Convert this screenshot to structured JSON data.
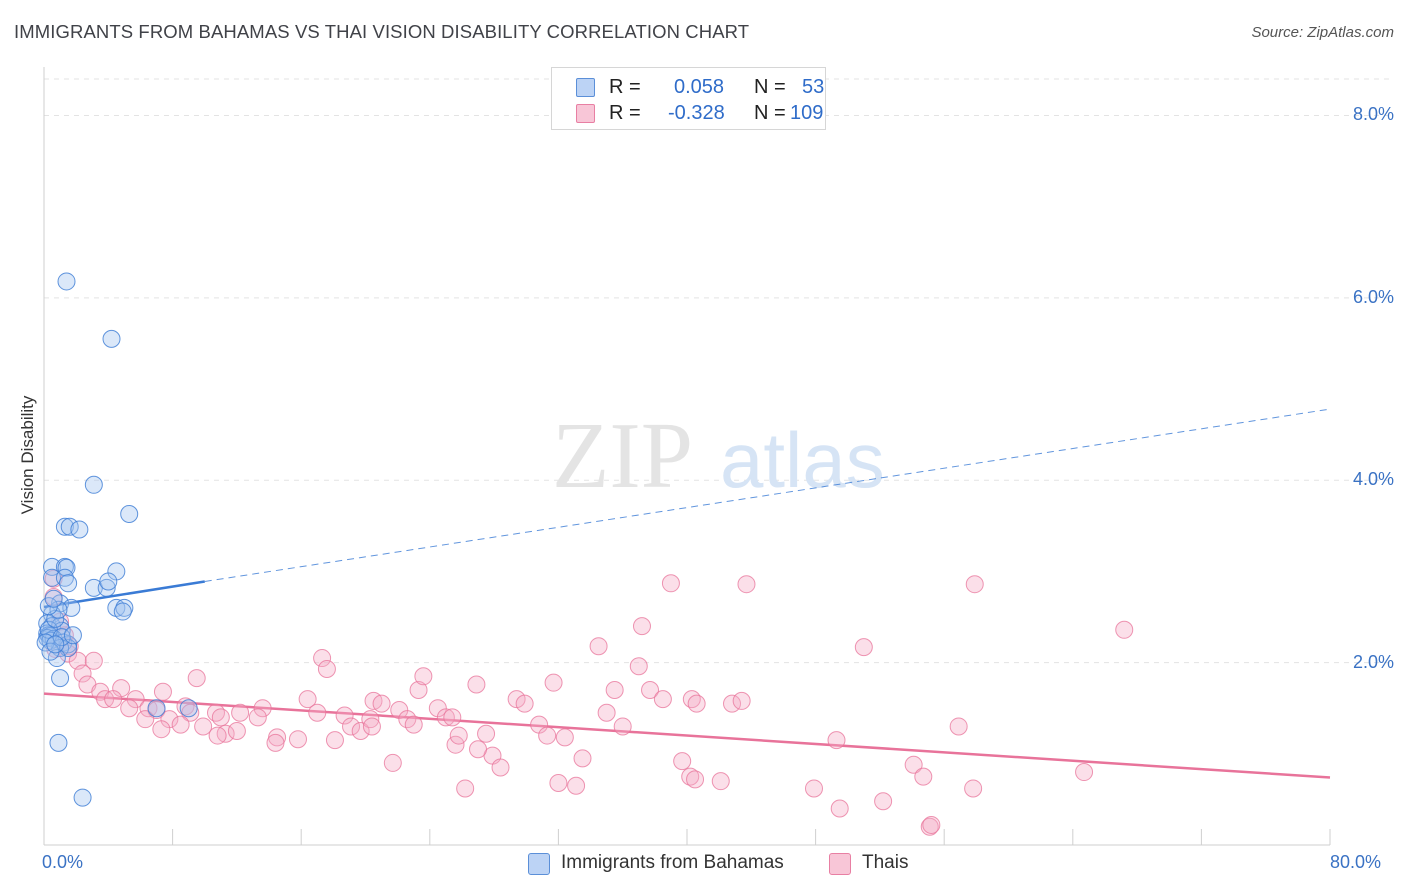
{
  "header": {
    "title": "IMMIGRANTS FROM BAHAMAS VS THAI VISION DISABILITY CORRELATION CHART",
    "source": "Source: ZipAtlas.com"
  },
  "watermark": {
    "zip": "ZIP",
    "atlas": "atlas"
  },
  "legend": {
    "rows": [
      {
        "r_label": "R =",
        "r_value": "0.058",
        "n_label": "N =",
        "n_value": "53",
        "color": "#5b8fd8",
        "fill": "#bcd3f5"
      },
      {
        "r_label": "R =",
        "r_value": "-0.328",
        "n_label": "N =",
        "n_value": "109",
        "color": "#e87fa3",
        "fill": "#f8c6d7"
      }
    ]
  },
  "bottom_legend": [
    {
      "label": "Immigrants from Bahamas",
      "color": "#5b8fd8",
      "fill": "#bcd3f5"
    },
    {
      "label": "Thais",
      "color": "#e87fa3",
      "fill": "#f8c6d7"
    }
  ],
  "chart_data": {
    "type": "scatter",
    "title": "IMMIGRANTS FROM BAHAMAS VS THAI VISION DISABILITY CORRELATION CHART",
    "xlabel": "",
    "ylabel": "Vision Disability",
    "xlim": [
      0,
      80
    ],
    "ylim": [
      0,
      8.4
    ],
    "x_tick_labels": [
      "0.0%",
      "80.0%"
    ],
    "y_ticks": [
      2,
      4,
      6,
      8
    ],
    "y_tick_labels": [
      "2.0%",
      "4.0%",
      "6.0%",
      "8.0%"
    ],
    "grid": true,
    "colors": {
      "bahamas": "#3a7bd5",
      "thais": "#e8739a",
      "tick_text": "#3a72c4"
    },
    "series": [
      {
        "name": "Immigrants from Bahamas",
        "trendline": {
          "x": [
            0,
            10
          ],
          "y": [
            2.61,
            2.89
          ],
          "dashed_to_x": 80,
          "dashed_to_y": 4.78
        },
        "points": [
          [
            1.4,
            6.18
          ],
          [
            4.2,
            5.55
          ],
          [
            3.1,
            3.95
          ],
          [
            5.3,
            3.63
          ],
          [
            1.3,
            3.49
          ],
          [
            1.6,
            3.49
          ],
          [
            2.2,
            3.46
          ],
          [
            0.5,
            3.05
          ],
          [
            1.3,
            3.05
          ],
          [
            1.4,
            3.04
          ],
          [
            4.5,
            3.0
          ],
          [
            0.5,
            2.93
          ],
          [
            1.3,
            2.93
          ],
          [
            1.5,
            2.87
          ],
          [
            3.1,
            2.82
          ],
          [
            3.9,
            2.82
          ],
          [
            4.0,
            2.89
          ],
          [
            1.0,
            2.65
          ],
          [
            1.7,
            2.6
          ],
          [
            4.5,
            2.6
          ],
          [
            5.0,
            2.6
          ],
          [
            4.9,
            2.56
          ],
          [
            0.5,
            2.53
          ],
          [
            0.2,
            2.43
          ],
          [
            0.5,
            2.4
          ],
          [
            1.0,
            2.4
          ],
          [
            1.1,
            2.35
          ],
          [
            0.2,
            2.32
          ],
          [
            0.3,
            2.3
          ],
          [
            0.4,
            2.29
          ],
          [
            0.2,
            2.27
          ],
          [
            0.6,
            2.26
          ],
          [
            0.4,
            2.24
          ],
          [
            1.2,
            2.22
          ],
          [
            1.5,
            2.2
          ],
          [
            1.0,
            2.16
          ],
          [
            1.5,
            2.16
          ],
          [
            0.8,
            2.05
          ],
          [
            1.0,
            1.83
          ],
          [
            7.0,
            1.5
          ],
          [
            9.0,
            1.5
          ],
          [
            0.9,
            1.12
          ],
          [
            2.4,
            0.52
          ],
          [
            0.3,
            2.36
          ],
          [
            0.7,
            2.48
          ],
          [
            1.1,
            2.28
          ],
          [
            0.1,
            2.22
          ],
          [
            0.9,
            2.58
          ],
          [
            0.3,
            2.62
          ],
          [
            0.6,
            2.7
          ],
          [
            1.8,
            2.3
          ],
          [
            0.4,
            2.12
          ],
          [
            0.7,
            2.2
          ]
        ]
      },
      {
        "name": "Thais",
        "trendline": {
          "x": [
            0,
            80
          ],
          "y": [
            1.66,
            0.74
          ]
        },
        "points": [
          [
            0.6,
            2.72
          ],
          [
            0.6,
            2.92
          ],
          [
            1.0,
            2.45
          ],
          [
            1.3,
            2.3
          ],
          [
            0.7,
            2.15
          ],
          [
            1.6,
            2.18
          ],
          [
            1.5,
            2.1
          ],
          [
            2.1,
            2.02
          ],
          [
            3.1,
            2.02
          ],
          [
            2.4,
            1.88
          ],
          [
            4.8,
            1.72
          ],
          [
            2.7,
            1.76
          ],
          [
            3.5,
            1.68
          ],
          [
            3.8,
            1.6
          ],
          [
            4.3,
            1.6
          ],
          [
            5.7,
            1.6
          ],
          [
            7.4,
            1.68
          ],
          [
            9.5,
            1.83
          ],
          [
            5.3,
            1.5
          ],
          [
            6.5,
            1.5
          ],
          [
            7.0,
            1.48
          ],
          [
            8.8,
            1.52
          ],
          [
            9.1,
            1.45
          ],
          [
            10.7,
            1.45
          ],
          [
            6.3,
            1.38
          ],
          [
            7.8,
            1.38
          ],
          [
            8.5,
            1.32
          ],
          [
            9.9,
            1.3
          ],
          [
            11.0,
            1.4
          ],
          [
            12.2,
            1.45
          ],
          [
            7.3,
            1.27
          ],
          [
            11.3,
            1.22
          ],
          [
            10.8,
            1.2
          ],
          [
            12.0,
            1.25
          ],
          [
            13.6,
            1.5
          ],
          [
            13.3,
            1.4
          ],
          [
            14.5,
            1.18
          ],
          [
            14.4,
            1.12
          ],
          [
            15.8,
            1.16
          ],
          [
            16.4,
            1.6
          ],
          [
            17.0,
            1.45
          ],
          [
            17.3,
            2.05
          ],
          [
            17.6,
            1.93
          ],
          [
            18.1,
            1.15
          ],
          [
            18.7,
            1.42
          ],
          [
            19.1,
            1.3
          ],
          [
            19.7,
            1.25
          ],
          [
            20.3,
            1.38
          ],
          [
            20.5,
            1.58
          ],
          [
            21.0,
            1.55
          ],
          [
            22.1,
            1.48
          ],
          [
            22.6,
            1.38
          ],
          [
            23.0,
            1.32
          ],
          [
            21.7,
            0.9
          ],
          [
            20.4,
            1.3
          ],
          [
            23.3,
            1.7
          ],
          [
            23.6,
            1.85
          ],
          [
            24.5,
            1.5
          ],
          [
            25.0,
            1.4
          ],
          [
            25.6,
            1.1
          ],
          [
            25.4,
            1.4
          ],
          [
            25.8,
            1.2
          ],
          [
            26.9,
            1.76
          ],
          [
            27.5,
            1.22
          ],
          [
            27.9,
            0.98
          ],
          [
            28.4,
            0.85
          ],
          [
            27.0,
            1.05
          ],
          [
            26.2,
            0.62
          ],
          [
            29.4,
            1.6
          ],
          [
            29.9,
            1.55
          ],
          [
            30.8,
            1.32
          ],
          [
            31.3,
            1.2
          ],
          [
            31.7,
            1.78
          ],
          [
            32.4,
            1.18
          ],
          [
            32.0,
            0.68
          ],
          [
            33.1,
            0.65
          ],
          [
            33.5,
            0.95
          ],
          [
            34.5,
            2.18
          ],
          [
            35.0,
            1.45
          ],
          [
            35.5,
            1.7
          ],
          [
            36.0,
            1.3
          ],
          [
            37.0,
            1.96
          ],
          [
            37.7,
            1.7
          ],
          [
            37.2,
            2.4
          ],
          [
            38.5,
            1.6
          ],
          [
            39.7,
            0.92
          ],
          [
            40.3,
            1.6
          ],
          [
            40.6,
            1.55
          ],
          [
            40.2,
            0.75
          ],
          [
            42.1,
            0.7
          ],
          [
            42.8,
            1.55
          ],
          [
            39.0,
            2.87
          ],
          [
            43.4,
            1.58
          ],
          [
            40.5,
            0.72
          ],
          [
            43.7,
            2.86
          ],
          [
            47.9,
            0.62
          ],
          [
            49.5,
            0.4
          ],
          [
            51.0,
            2.17
          ],
          [
            52.2,
            0.48
          ],
          [
            54.1,
            0.88
          ],
          [
            54.7,
            0.75
          ],
          [
            55.1,
            0.2
          ],
          [
            55.2,
            0.22
          ],
          [
            57.8,
            0.62
          ],
          [
            64.7,
            0.8
          ],
          [
            67.2,
            2.36
          ],
          [
            57.9,
            2.86
          ],
          [
            49.3,
            1.15
          ],
          [
            56.9,
            1.3
          ]
        ]
      }
    ]
  }
}
